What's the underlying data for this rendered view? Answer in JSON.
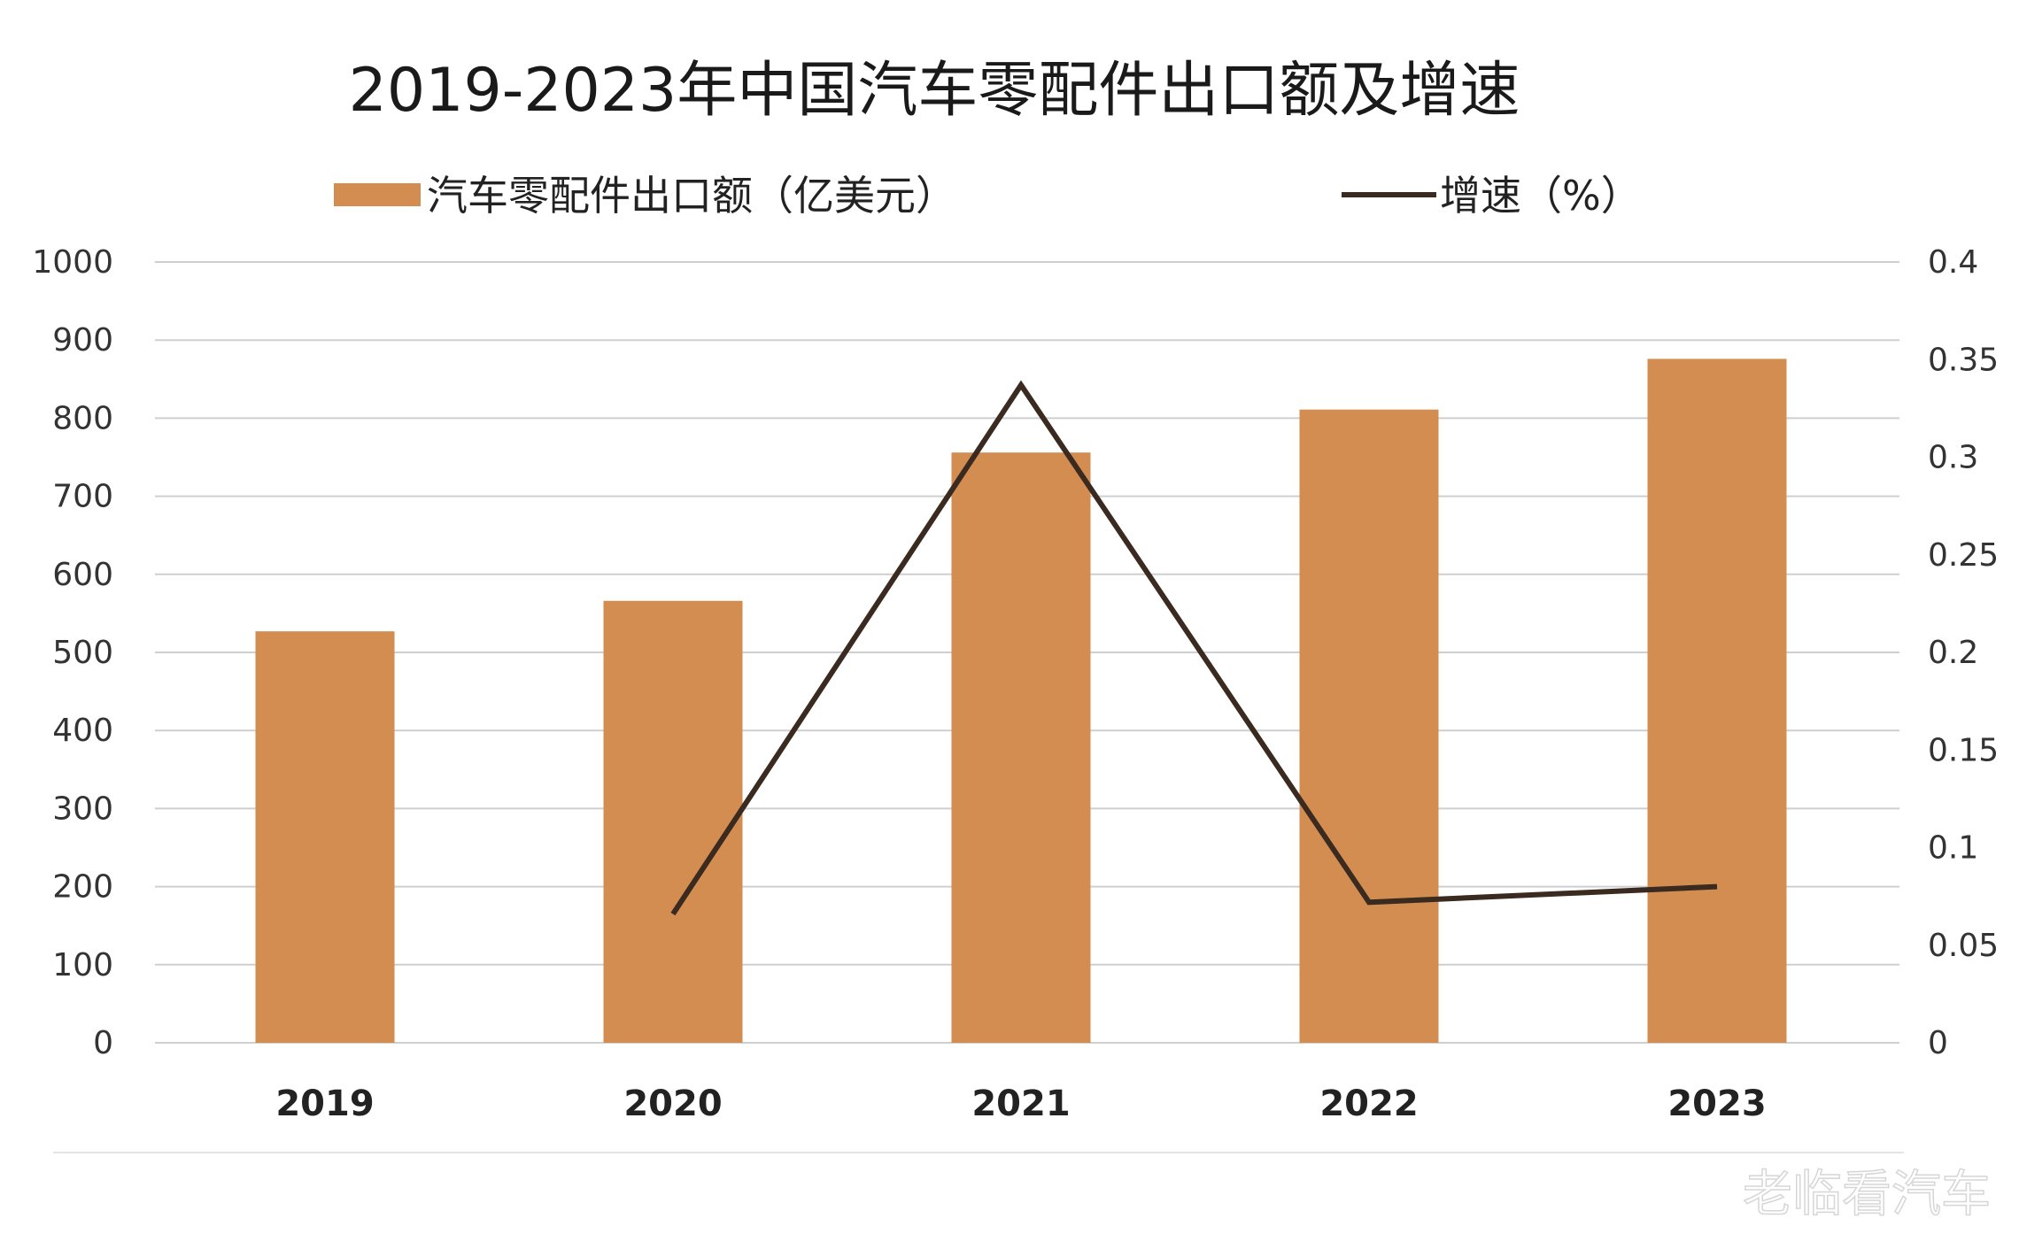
{
  "watermark": "老临看汽车",
  "chart_data": {
    "type": "bar",
    "title": "2019-2023年中国汽车零配件出口额及增速",
    "categories": [
      "2019",
      "2020",
      "2021",
      "2022",
      "2023"
    ],
    "series": [
      {
        "name": "汽车零配件出口额（亿美元）",
        "type": "bar",
        "axis": "left",
        "color": "#d38d51",
        "values": [
          527,
          566,
          756,
          811,
          876
        ]
      },
      {
        "name": "增速（%）",
        "type": "line",
        "axis": "right",
        "color": "#3a2a1f",
        "values": [
          null,
          0.066,
          0.337,
          0.072,
          0.08
        ]
      }
    ],
    "y_left": {
      "min": 0,
      "max": 1000,
      "ticks": [
        "0",
        "100",
        "200",
        "300",
        "400",
        "500",
        "600",
        "700",
        "800",
        "900",
        "1000"
      ]
    },
    "y_right": {
      "min": 0,
      "max": 0.4,
      "ticks": [
        "0",
        "0.05",
        "0.1",
        "0.15",
        "0.2",
        "0.25",
        "0.3",
        "0.35",
        "0.4"
      ]
    },
    "grid": true,
    "legend_position": "top"
  }
}
